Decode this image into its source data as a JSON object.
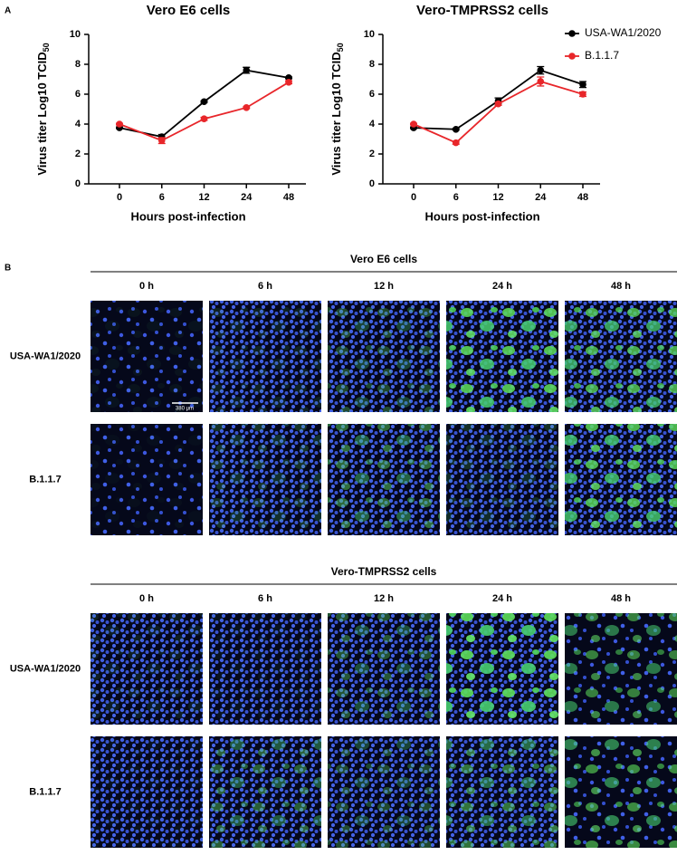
{
  "panel_labels": [
    "A",
    "B"
  ],
  "chart_data": [
    {
      "type": "line",
      "title": "Vero E6 cells",
      "x_label": "Hours post-infection",
      "y_label": "Virus titer Log10 TCID",
      "y_label_subscript": "50",
      "categories": [
        "0",
        "6",
        "12",
        "24",
        "48"
      ],
      "ylim": [
        0,
        10
      ],
      "yticks": [
        0,
        2,
        4,
        6,
        8,
        10
      ],
      "legend": false,
      "series": [
        {
          "name": "USA-WA1/2020",
          "color": "#000000",
          "values": [
            3.75,
            3.15,
            5.5,
            7.6,
            7.1
          ],
          "errors": [
            0.05,
            0.15,
            0.05,
            0.2,
            0.05
          ]
        },
        {
          "name": "B.1.1.7",
          "color": "#e8262a",
          "values": [
            4.0,
            2.9,
            4.35,
            5.1,
            6.8
          ],
          "errors": [
            0.05,
            0.2,
            0.1,
            0.05,
            0.1
          ]
        }
      ]
    },
    {
      "type": "line",
      "title": "Vero-TMPRSS2 cells",
      "x_label": "Hours post-infection",
      "y_label": "Virus titer Log10 TCID",
      "y_label_subscript": "50",
      "categories": [
        "0",
        "6",
        "12",
        "24",
        "48"
      ],
      "ylim": [
        0,
        10
      ],
      "yticks": [
        0,
        2,
        4,
        6,
        8,
        10
      ],
      "legend": "upper right",
      "series": [
        {
          "name": "USA-WA1/2020",
          "color": "#000000",
          "values": [
            3.75,
            3.65,
            5.55,
            7.6,
            6.65
          ],
          "errors": [
            0.05,
            0.05,
            0.2,
            0.25,
            0.2
          ]
        },
        {
          "name": "B.1.1.7",
          "color": "#e8262a",
          "values": [
            4.0,
            2.75,
            5.35,
            6.85,
            6.0
          ],
          "errors": [
            0.05,
            0.1,
            0.1,
            0.3,
            0.15
          ]
        }
      ]
    }
  ],
  "microscopy": [
    {
      "title": "Vero E6 cells",
      "columns": [
        "0 h",
        "6 h",
        "12 h",
        "24 h",
        "48 h"
      ],
      "rows": [
        "USA-WA1/2020",
        "B.1.1.7"
      ],
      "scale_bar": "380 μm"
    },
    {
      "title": "Vero-TMPRSS2 cells",
      "columns": [
        "0 h",
        "6 h",
        "12 h",
        "24 h",
        "48 h"
      ],
      "rows": [
        "USA-WA1/2020",
        "B.1.1.7"
      ]
    }
  ]
}
